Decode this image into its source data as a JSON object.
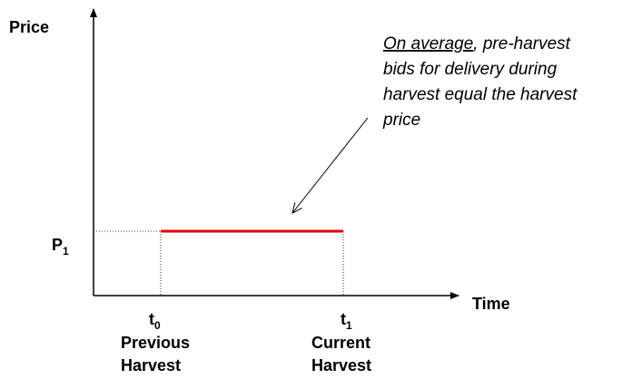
{
  "axes": {
    "y_label": "Price",
    "x_label": "Time"
  },
  "price_level": {
    "base": "P",
    "sub": "1"
  },
  "points": [
    {
      "base": "t",
      "sub": "0",
      "label": [
        "Previous",
        "Harvest"
      ]
    },
    {
      "base": "t",
      "sub": "1",
      "label": [
        "Current",
        "Harvest"
      ]
    }
  ],
  "annotation": {
    "underlined": "On average",
    "lines": [
      ", pre-harvest",
      "bids for delivery during",
      "harvest equal the harvest",
      "price"
    ]
  }
}
